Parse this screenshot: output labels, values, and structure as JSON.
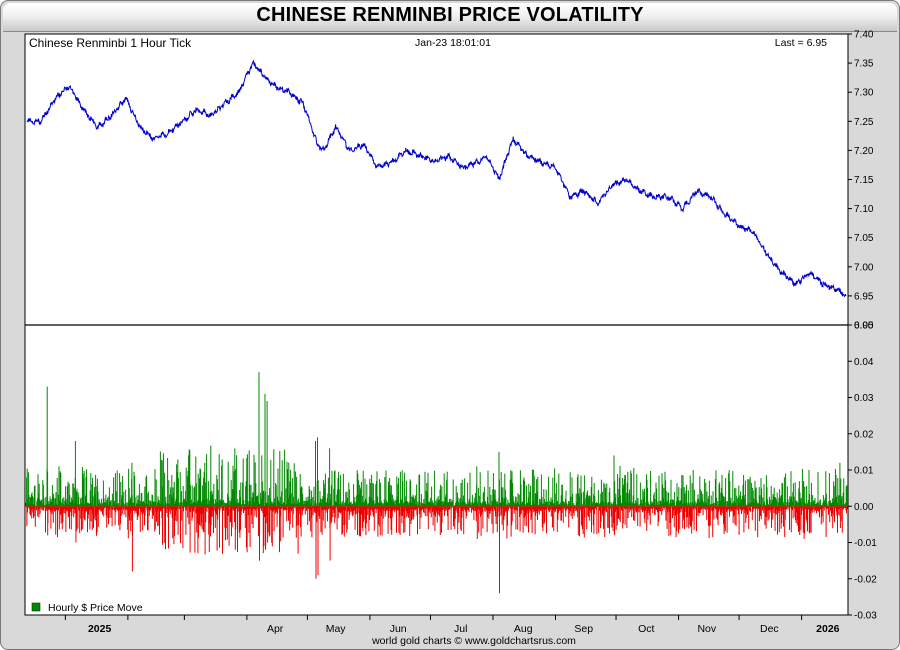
{
  "title": "CHINESE RENMINBI PRICE VOLATILITY",
  "footer": "world gold charts © www.goldchartsrus.com",
  "chart_data": [
    {
      "type": "line",
      "header_left": "Chinese Renminbi 1 Hour Tick",
      "header_center": "Jan-23  18:01:01",
      "header_right": "Last = 6.95",
      "ylim": [
        6.9,
        7.4
      ],
      "yticks": [
        "7.40",
        "7.35",
        "7.30",
        "7.25",
        "7.20",
        "7.15",
        "7.10",
        "7.05",
        "7.00",
        "6.95",
        "6.90"
      ],
      "color": "#0000cc",
      "x_axis_labels": [
        "2025",
        "Apr",
        "May",
        "Jun",
        "Jul",
        "Aug",
        "Sep",
        "Oct",
        "Nov",
        "Dec",
        "2026"
      ],
      "x": [
        "2024-12-13",
        "2024-12-20",
        "2024-12-27",
        "2025-01-03",
        "2025-01-10",
        "2025-01-17",
        "2025-01-24",
        "2025-01-31",
        "2025-02-07",
        "2025-02-14",
        "2025-02-21",
        "2025-02-28",
        "2025-03-07",
        "2025-03-14",
        "2025-03-21",
        "2025-03-28",
        "2025-04-04",
        "2025-04-09",
        "2025-04-15",
        "2025-04-22",
        "2025-04-29",
        "2025-05-06",
        "2025-05-09",
        "2025-05-15",
        "2025-05-22",
        "2025-05-29",
        "2025-06-05",
        "2025-06-12",
        "2025-06-19",
        "2025-06-26",
        "2025-07-03",
        "2025-07-10",
        "2025-07-17",
        "2025-07-24",
        "2025-07-29",
        "2025-08-04",
        "2025-08-11",
        "2025-08-18",
        "2025-08-25",
        "2025-09-01",
        "2025-09-08",
        "2025-09-15",
        "2025-09-22",
        "2025-09-29",
        "2025-10-06",
        "2025-10-13",
        "2025-10-20",
        "2025-10-27",
        "2025-11-03",
        "2025-11-10",
        "2025-11-17",
        "2025-11-24",
        "2025-12-01",
        "2025-12-08",
        "2025-12-15",
        "2025-12-22",
        "2025-12-29",
        "2026-01-05",
        "2026-01-12",
        "2026-01-19",
        "2026-01-23"
      ],
      "values": [
        7.25,
        7.25,
        7.29,
        7.31,
        7.27,
        7.24,
        7.26,
        7.29,
        7.24,
        7.22,
        7.23,
        7.25,
        7.27,
        7.26,
        7.28,
        7.3,
        7.35,
        7.33,
        7.31,
        7.3,
        7.28,
        7.21,
        7.2,
        7.24,
        7.2,
        7.21,
        7.17,
        7.18,
        7.2,
        7.19,
        7.18,
        7.19,
        7.17,
        7.18,
        7.19,
        7.15,
        7.22,
        7.19,
        7.18,
        7.17,
        7.12,
        7.13,
        7.11,
        7.14,
        7.15,
        7.13,
        7.12,
        7.12,
        7.1,
        7.13,
        7.12,
        7.09,
        7.07,
        7.06,
        7.02,
        6.99,
        6.97,
        6.99,
        6.97,
        6.96,
        6.95
      ]
    },
    {
      "type": "bar",
      "legend": "Hourly $ Price Move",
      "ylim": [
        -0.03,
        0.05
      ],
      "yticks": [
        "0.05",
        "0.04",
        "0.03",
        "0.02",
        "0.01",
        "0.00",
        "-0.01",
        "-0.02",
        "-0.03"
      ],
      "up_color": "#008800",
      "down_color": "#ee0000",
      "x_axis_labels": [
        "2025",
        "Apr",
        "May",
        "Jun",
        "Jul",
        "Aug",
        "Sep",
        "Oct",
        "Nov",
        "Dec",
        "2026"
      ],
      "x": [
        "2024-12-23",
        "2025-01-06",
        "2025-02-03",
        "2025-03-26",
        "2025-04-07",
        "2025-04-10",
        "2025-04-11",
        "2025-05-05",
        "2025-05-06",
        "2025-05-12",
        "2025-07-24",
        "2025-08-04",
        "2025-09-30",
        "2026-01-02",
        "2026-01-20"
      ],
      "up_moves": [
        0.033,
        0.018,
        0.012,
        0.016,
        0.037,
        0.031,
        0.029,
        0.018,
        0.019,
        0.016,
        0.011,
        0.015,
        0.014,
        0.007,
        0.012
      ],
      "down_moves": [
        -0.008,
        -0.01,
        -0.018,
        -0.012,
        -0.015,
        -0.012,
        -0.01,
        -0.02,
        -0.019,
        -0.015,
        -0.009,
        -0.024,
        -0.008,
        -0.009,
        -0.006
      ]
    }
  ]
}
